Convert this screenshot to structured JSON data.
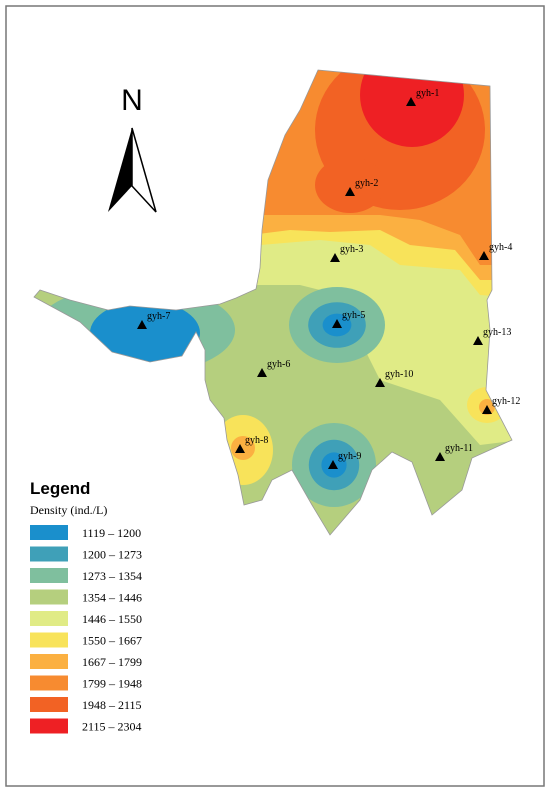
{
  "north_arrow": {
    "label": "N"
  },
  "stations": [
    "gyh-1",
    "gyh-2",
    "gyh-3",
    "gyh-4",
    "gyh-5",
    "gyh-6",
    "gyh-7",
    "gyh-8",
    "gyh-9",
    "gyh-10",
    "gyh-11",
    "gyh-12",
    "gyh-13"
  ],
  "legend": {
    "title": "Legend",
    "subtitle": "Density (ind./L)",
    "items": [
      {
        "label": "1119 – 1200",
        "color": "#1a8fcc"
      },
      {
        "label": "1200 – 1273",
        "color": "#3fa0b8"
      },
      {
        "label": "1273 – 1354",
        "color": "#7fbf9e"
      },
      {
        "label": "1354 – 1446",
        "color": "#b5cf7e"
      },
      {
        "label": "1446 – 1550",
        "color": "#e0eb86"
      },
      {
        "label": "1550 – 1667",
        "color": "#f8e35a"
      },
      {
        "label": "1667 – 1799",
        "color": "#fbb041"
      },
      {
        "label": "1799 – 1948",
        "color": "#f78b30"
      },
      {
        "label": "1948 – 2115",
        "color": "#f26224"
      },
      {
        "label": "2115 – 2304",
        "color": "#ee2024"
      }
    ]
  }
}
